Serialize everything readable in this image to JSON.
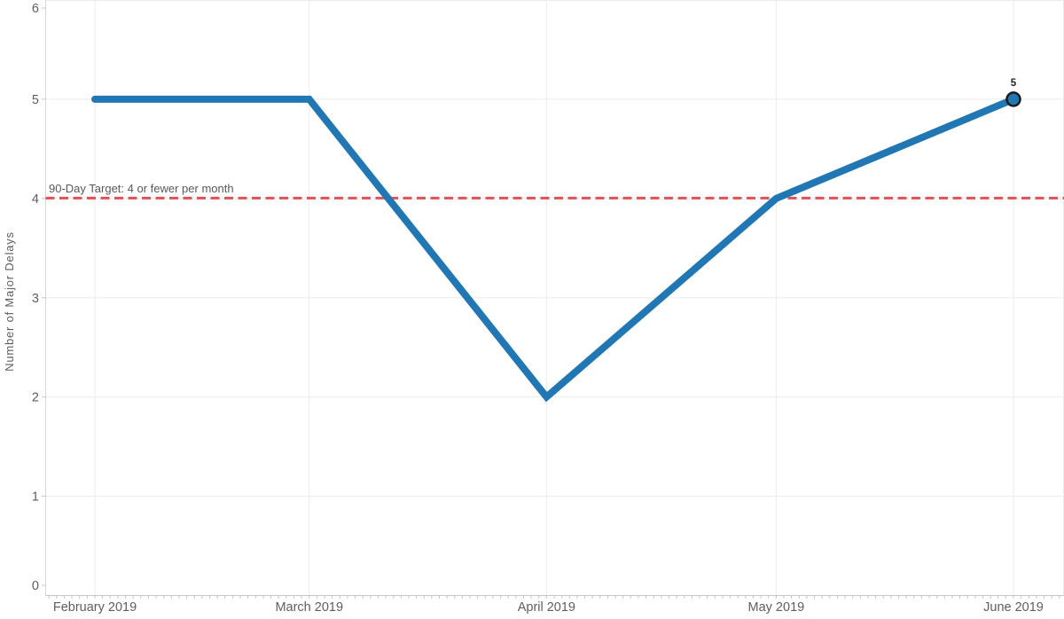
{
  "chart_data": {
    "type": "line",
    "ylabel": "Number of Major Delays",
    "categories": [
      "February 2019",
      "March 2019",
      "April 2019",
      "May 2019",
      "June 2019"
    ],
    "x_days": [
      0,
      28,
      59,
      89,
      120
    ],
    "values": [
      5,
      5,
      2,
      4,
      5
    ],
    "ylim": [
      0,
      6
    ],
    "yticks": [
      "0",
      "1",
      "2",
      "3",
      "4",
      "5",
      "6"
    ],
    "grid": "on",
    "legend": "none",
    "line_color": "#2077B4",
    "end_marker": {
      "category": "June 2019",
      "value": 5,
      "label": "5",
      "fill": "#2077B4",
      "stroke": "#1A1A1A"
    },
    "reference_line": {
      "label": "90-Day Target: 4 or fewer per month",
      "value": 4,
      "color": "#E05252",
      "style": "dashed"
    },
    "colors": {
      "gridline": "#EBEBEB",
      "axis_line": "#C8C6C4",
      "left_axis_line": "#D8D8D8",
      "tick": "#C8C6C4",
      "tick_label": "#605E5C",
      "axis_title": "#605E5C",
      "annotation_text": "#595959",
      "data_label": "#252423"
    }
  }
}
